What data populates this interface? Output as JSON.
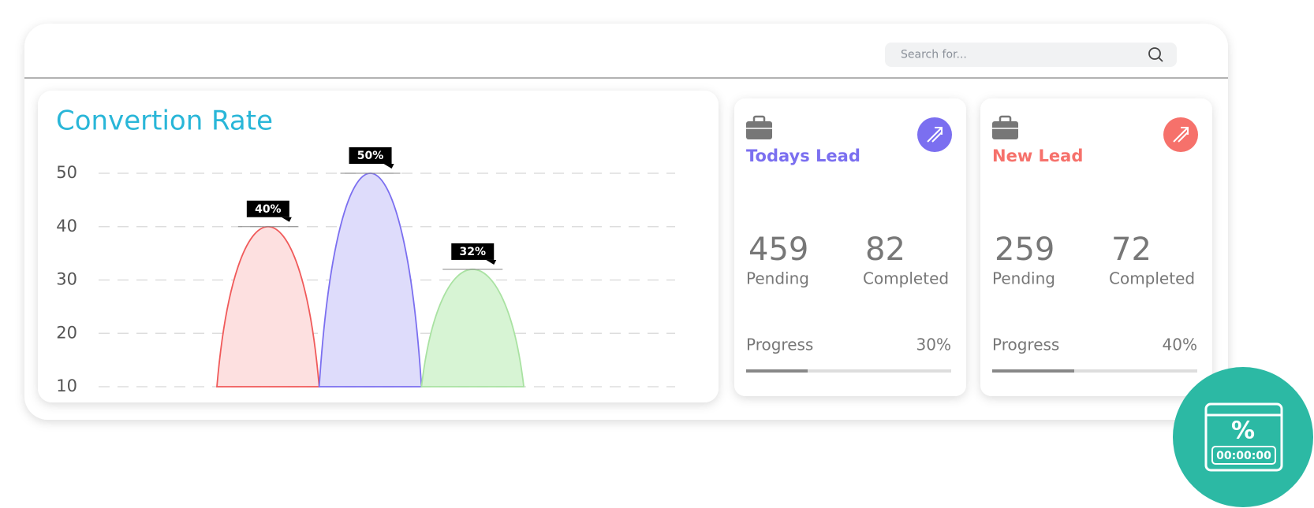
{
  "search": {
    "placeholder": "Search for..."
  },
  "chart_data": {
    "type": "area",
    "title": "Convertion Rate",
    "values": [
      40,
      50,
      32
    ],
    "value_labels": [
      "40%",
      "50%",
      "32%"
    ],
    "colors": [
      "#f05a5a",
      "#7b6ff0",
      "#a9e2a2"
    ],
    "fill_colors": [
      "#fde0e0",
      "#dedcfb",
      "#d7f4d4"
    ],
    "ylim": [
      10,
      50
    ],
    "yticks": [
      10,
      20,
      30,
      40,
      50
    ],
    "grid": true
  },
  "cards": [
    {
      "title": "Todays Lead",
      "accent": "#7b6ff0",
      "stats": [
        {
          "value": 459,
          "label": "Pending"
        },
        {
          "value": 82,
          "label": "Completed"
        }
      ],
      "progress_label": "Progress",
      "progress": {
        "value": 30,
        "label": "30%"
      }
    },
    {
      "title": "New Lead",
      "accent": "#f6716b",
      "stats": [
        {
          "value": 259,
          "label": "Pending"
        },
        {
          "value": 72,
          "label": "Completed"
        }
      ],
      "progress_label": "Progress",
      "progress": {
        "value": 40,
        "label": "40%"
      }
    }
  ],
  "badge": {
    "symbol": "%",
    "timer": "00:00:00"
  }
}
